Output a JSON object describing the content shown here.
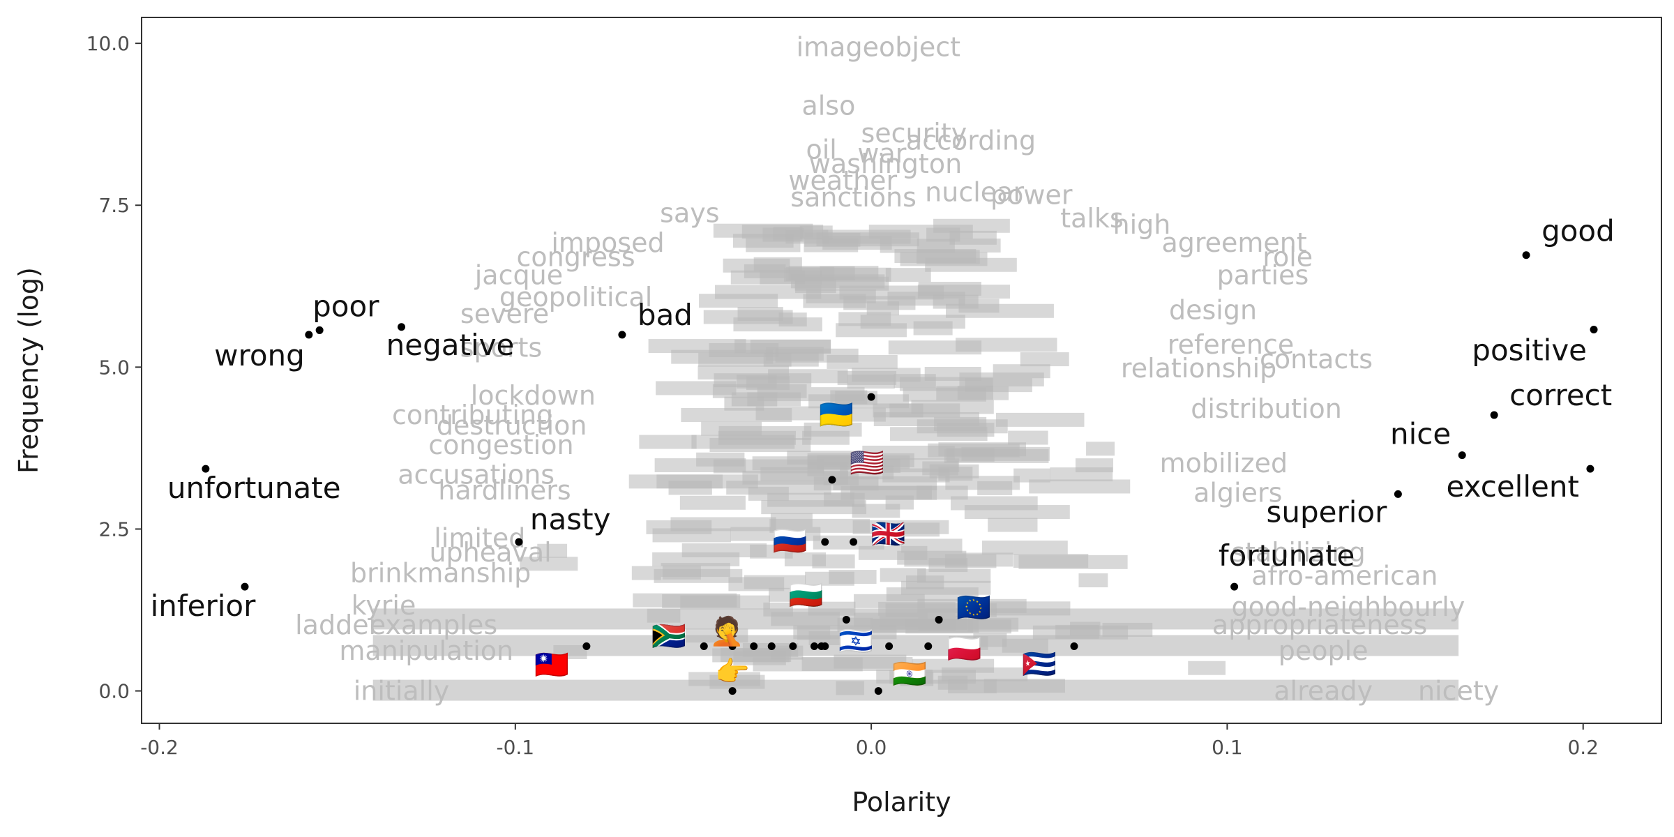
{
  "chart_data": {
    "type": "scatter",
    "title": "",
    "xlabel": "Polarity",
    "ylabel": "Frequency (log)",
    "xlim": [
      -0.205,
      0.222
    ],
    "ylim": [
      -0.5,
      10.4
    ],
    "x_ticks": [
      -0.2,
      -0.1,
      0.0,
      0.1,
      0.2
    ],
    "x_tick_labels": [
      "-0.2",
      "-0.1",
      "0.0",
      "0.1",
      "0.2"
    ],
    "y_ticks": [
      0.0,
      2.5,
      5.0,
      7.5,
      10.0
    ],
    "y_tick_labels": [
      "0.0",
      "2.5",
      "5.0",
      "7.5",
      "10.0"
    ],
    "grid": false,
    "panel_border": true,
    "colors": {
      "highlight": "#000000",
      "background_words": "#bdbdbd",
      "axis": "#333333"
    },
    "highlighted_points": [
      {
        "label": "good",
        "x": 0.184,
        "y": 6.73
      },
      {
        "label": "positive",
        "x": 0.203,
        "y": 5.58
      },
      {
        "label": "correct",
        "x": 0.175,
        "y": 4.26
      },
      {
        "label": "nice",
        "x": 0.166,
        "y": 3.64
      },
      {
        "label": "excellent",
        "x": 0.202,
        "y": 3.43
      },
      {
        "label": "superior",
        "x": 0.148,
        "y": 3.04
      },
      {
        "label": "fortunate",
        "x": 0.102,
        "y": 1.61
      },
      {
        "label": "poor",
        "x": -0.155,
        "y": 5.57
      },
      {
        "label": "wrong",
        "x": -0.158,
        "y": 5.5
      },
      {
        "label": "negative",
        "x": -0.132,
        "y": 5.62
      },
      {
        "label": "bad",
        "x": -0.07,
        "y": 5.5
      },
      {
        "label": "unfortunate",
        "x": -0.187,
        "y": 3.43
      },
      {
        "label": "nasty",
        "x": -0.099,
        "y": 2.3
      },
      {
        "label": "inferior",
        "x": -0.176,
        "y": 1.61
      }
    ],
    "emoji_points": [
      {
        "label": "🇺🇦",
        "name": "flag-ukraine",
        "x": 0.0,
        "y": 4.54
      },
      {
        "label": "🇺🇸",
        "name": "flag-united-states",
        "x": -0.011,
        "y": 3.26
      },
      {
        "label": "🇷🇺",
        "name": "flag-russia",
        "x": -0.013,
        "y": 2.3
      },
      {
        "label": "🇬🇧",
        "name": "flag-united-kingdom",
        "x": -0.005,
        "y": 2.3
      },
      {
        "label": "🇧🇬",
        "name": "flag-bulgaria",
        "x": -0.007,
        "y": 1.1
      },
      {
        "label": "🇪🇺",
        "name": "flag-european-union",
        "x": 0.019,
        "y": 1.1
      },
      {
        "label": "🇿🇦",
        "name": "flag-south-africa",
        "x": -0.047,
        "y": 0.69
      },
      {
        "label": "🤦",
        "name": "facepalm-emoji",
        "x": -0.039,
        "y": 0.69
      },
      {
        "label": "🇮🇱",
        "name": "flag-israel",
        "x": -0.002,
        "y": 0.69
      },
      {
        "label": "🇵🇱",
        "name": "flag-poland",
        "x": 0.016,
        "y": 0.69
      },
      {
        "label": "🇹🇼",
        "name": "flag-taiwan",
        "x": -0.08,
        "y": 0.69
      },
      {
        "label": "🇨🇺",
        "name": "flag-cuba",
        "x": 0.057,
        "y": 0.69
      },
      {
        "label": "👉",
        "name": "pointing-hand-emoji",
        "x": -0.039,
        "y": 0.0
      },
      {
        "label": "🇮🇳",
        "name": "flag-india",
        "x": 0.002,
        "y": 0.0
      }
    ],
    "extra_points": [
      {
        "x": -0.033,
        "y": 0.69
      },
      {
        "x": -0.028,
        "y": 0.69
      },
      {
        "x": -0.022,
        "y": 0.69
      },
      {
        "x": -0.016,
        "y": 0.69
      },
      {
        "x": -0.014,
        "y": 0.69
      },
      {
        "x": -0.013,
        "y": 0.69
      },
      {
        "x": 0.005,
        "y": 0.69
      }
    ],
    "background_words": [
      {
        "word": "imageobject",
        "x": 0.002,
        "y": 9.94
      },
      {
        "word": "also",
        "x": -0.012,
        "y": 9.04
      },
      {
        "word": "security",
        "x": 0.012,
        "y": 8.61
      },
      {
        "word": "according",
        "x": 0.028,
        "y": 8.5
      },
      {
        "word": "oil",
        "x": -0.014,
        "y": 8.36
      },
      {
        "word": "washington",
        "x": 0.004,
        "y": 8.14
      },
      {
        "word": "war",
        "x": 0.003,
        "y": 8.3
      },
      {
        "word": "weather",
        "x": -0.008,
        "y": 7.88
      },
      {
        "word": "sanctions",
        "x": -0.005,
        "y": 7.62
      },
      {
        "word": "power",
        "x": 0.045,
        "y": 7.66
      },
      {
        "word": "nuclear",
        "x": 0.029,
        "y": 7.7
      },
      {
        "word": "says",
        "x": -0.051,
        "y": 7.38
      },
      {
        "word": "talks",
        "x": 0.062,
        "y": 7.3
      },
      {
        "word": "high",
        "x": 0.076,
        "y": 7.2
      },
      {
        "word": "agreement",
        "x": 0.102,
        "y": 6.92
      },
      {
        "word": "congress",
        "x": -0.083,
        "y": 6.7
      },
      {
        "word": "imposed",
        "x": -0.074,
        "y": 6.92
      },
      {
        "word": "role",
        "x": 0.117,
        "y": 6.7
      },
      {
        "word": "jacque",
        "x": -0.099,
        "y": 6.42
      },
      {
        "word": "parties",
        "x": 0.11,
        "y": 6.42
      },
      {
        "word": "geopolitical",
        "x": -0.083,
        "y": 6.08
      },
      {
        "word": "severe",
        "x": -0.103,
        "y": 5.82
      },
      {
        "word": "design",
        "x": 0.096,
        "y": 5.88
      },
      {
        "word": "sports",
        "x": -0.104,
        "y": 5.3
      },
      {
        "word": "reference",
        "x": 0.101,
        "y": 5.35
      },
      {
        "word": "contacts",
        "x": 0.125,
        "y": 5.12
      },
      {
        "word": "relationship",
        "x": 0.092,
        "y": 4.98
      },
      {
        "word": "lockdown",
        "x": -0.095,
        "y": 4.56
      },
      {
        "word": "contributing",
        "x": -0.112,
        "y": 4.26
      },
      {
        "word": "destruction",
        "x": -0.101,
        "y": 4.1
      },
      {
        "word": "distribution",
        "x": 0.111,
        "y": 4.36
      },
      {
        "word": "congestion",
        "x": -0.104,
        "y": 3.8
      },
      {
        "word": "accusations",
        "x": -0.111,
        "y": 3.34
      },
      {
        "word": "hardliners",
        "x": -0.103,
        "y": 3.1
      },
      {
        "word": "mobilized",
        "x": 0.099,
        "y": 3.52
      },
      {
        "word": "algiers",
        "x": 0.103,
        "y": 3.06
      },
      {
        "word": "limited",
        "x": -0.11,
        "y": 2.36
      },
      {
        "word": "upheaval",
        "x": -0.107,
        "y": 2.14
      },
      {
        "word": "stabilizing",
        "x": 0.12,
        "y": 2.14
      },
      {
        "word": "brinkmanship",
        "x": -0.121,
        "y": 1.82
      },
      {
        "word": "afro-american",
        "x": 0.133,
        "y": 1.78
      },
      {
        "word": "kyrie",
        "x": -0.137,
        "y": 1.32
      },
      {
        "word": "good-neighbourly",
        "x": 0.134,
        "y": 1.3
      },
      {
        "word": "ladder",
        "x": -0.15,
        "y": 1.02
      },
      {
        "word": "examples",
        "x": -0.123,
        "y": 1.02
      },
      {
        "word": "appropriateness",
        "x": 0.126,
        "y": 1.02
      },
      {
        "word": "manipulation",
        "x": -0.125,
        "y": 0.62
      },
      {
        "word": "people",
        "x": 0.127,
        "y": 0.62
      },
      {
        "word": "initially",
        "x": -0.132,
        "y": 0.0
      },
      {
        "word": "nicety",
        "x": 0.165,
        "y": 0.0
      },
      {
        "word": "already",
        "x": 0.127,
        "y": 0.0
      }
    ]
  }
}
